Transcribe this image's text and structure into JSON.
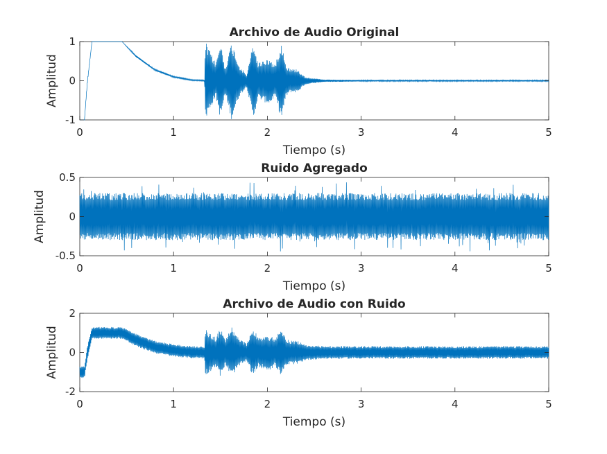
{
  "figure": {
    "background": "#ffffff"
  },
  "chart_data": [
    {
      "type": "line",
      "title": "Archivo de Audio Original",
      "xlabel": "Tiempo (s)",
      "ylabel": "Amplitud",
      "xlim": [
        0,
        5
      ],
      "ylim": [
        -1,
        1
      ],
      "xticks": [
        0,
        1,
        2,
        3,
        4,
        5
      ],
      "xtick_labels": [
        "0",
        "1",
        "2",
        "3",
        "4",
        "5"
      ],
      "yticks": [
        -1,
        0,
        1
      ],
      "ytick_labels": [
        "-1",
        "0",
        "1"
      ],
      "color": "#0072bd",
      "grid": false,
      "series": [
        {
          "envelope": {
            "x": [
              0,
              0.05,
              0.08,
              0.13,
              0.45,
              0.6,
              0.8,
              1.0,
              1.2,
              1.33,
              1.34,
              1.45,
              1.5,
              1.55,
              1.62,
              1.7,
              1.78,
              1.85,
              1.9,
              1.97,
              2.03,
              2.08,
              2.15,
              2.2,
              2.25,
              2.32,
              2.4,
              2.5,
              2.6,
              3,
              4,
              5
            ],
            "upper": [
              -1,
              -1,
              0,
              1,
              1,
              0.65,
              0.3,
              0.12,
              0.03,
              0.02,
              1,
              0.45,
              1,
              0.35,
              1,
              0.4,
              0.15,
              1,
              0.45,
              0.55,
              0.55,
              0.4,
              1,
              0.4,
              0.3,
              0.3,
              0.1,
              0.06,
              0.03,
              0.02,
              0.02,
              0.02
            ],
            "lower": [
              -1,
              -1,
              -0.1,
              1,
              1,
              0.6,
              0.26,
              0.08,
              0.0,
              -0.01,
              -1,
              -0.4,
              -1,
              -0.35,
              -1,
              -0.4,
              -0.15,
              -1,
              -0.45,
              -0.55,
              -0.6,
              -0.4,
              -1,
              -0.4,
              -0.3,
              -0.3,
              -0.1,
              -0.06,
              -0.03,
              -0.02,
              -0.02,
              -0.02
            ]
          }
        }
      ]
    },
    {
      "type": "line",
      "title": "Ruido Agregado",
      "xlabel": "Tiempo (s)",
      "ylabel": "Amplitud",
      "xlim": [
        0,
        5
      ],
      "ylim": [
        -0.5,
        0.5
      ],
      "xticks": [
        0,
        1,
        2,
        3,
        4,
        5
      ],
      "xtick_labels": [
        "0",
        "1",
        "2",
        "3",
        "4",
        "5"
      ],
      "yticks": [
        -0.5,
        0,
        0.5
      ],
      "ytick_labels": [
        "-0.5",
        "0",
        "0.5"
      ],
      "color": "#0072bd",
      "grid": false,
      "series": [
        {
          "envelope": {
            "x": [
              0,
              1,
              2,
              3,
              4,
              5
            ],
            "upper": [
              0.3,
              0.3,
              0.3,
              0.3,
              0.3,
              0.3
            ],
            "lower": [
              -0.3,
              -0.3,
              -0.3,
              -0.3,
              -0.3,
              -0.3
            ]
          },
          "peak_abs": 0.45
        }
      ]
    },
    {
      "type": "line",
      "title": "Archivo de Audio con Ruido",
      "xlabel": "Tiempo (s)",
      "ylabel": "Amplitud",
      "xlim": [
        0,
        5
      ],
      "ylim": [
        -2,
        2
      ],
      "xticks": [
        0,
        1,
        2,
        3,
        4,
        5
      ],
      "xtick_labels": [
        "0",
        "1",
        "2",
        "3",
        "4",
        "5"
      ],
      "yticks": [
        -2,
        0,
        2
      ],
      "ytick_labels": [
        "-2",
        "0",
        "2"
      ],
      "color": "#0072bd",
      "grid": false,
      "series": [
        {
          "envelope": {
            "x": [
              0,
              0.05,
              0.08,
              0.13,
              0.45,
              0.6,
              0.8,
              1.0,
              1.2,
              1.33,
              1.34,
              1.45,
              1.5,
              1.55,
              1.62,
              1.7,
              1.78,
              1.85,
              1.9,
              1.97,
              2.03,
              2.08,
              2.15,
              2.2,
              2.25,
              2.32,
              2.4,
              2.5,
              2.6,
              3,
              4,
              5
            ],
            "upper": [
              -0.7,
              -0.7,
              0.3,
              1.3,
              1.3,
              0.95,
              0.6,
              0.42,
              0.33,
              0.32,
              1.2,
              0.75,
              1.25,
              0.65,
              1.3,
              0.7,
              0.45,
              1.3,
              0.75,
              0.85,
              0.85,
              0.7,
              1.3,
              0.7,
              0.6,
              0.6,
              0.4,
              0.36,
              0.33,
              0.32,
              0.32,
              0.32
            ],
            "lower": [
              -1.3,
              -1.3,
              -0.4,
              0.7,
              0.7,
              0.3,
              -0.04,
              -0.22,
              -0.3,
              -0.31,
              -1.2,
              -0.7,
              -1.25,
              -0.65,
              -1.25,
              -0.7,
              -0.45,
              -1.25,
              -0.75,
              -0.85,
              -0.9,
              -0.7,
              -1.2,
              -0.7,
              -0.6,
              -0.6,
              -0.4,
              -0.36,
              -0.33,
              -0.32,
              -0.32,
              -0.32
            ]
          }
        }
      ]
    }
  ]
}
